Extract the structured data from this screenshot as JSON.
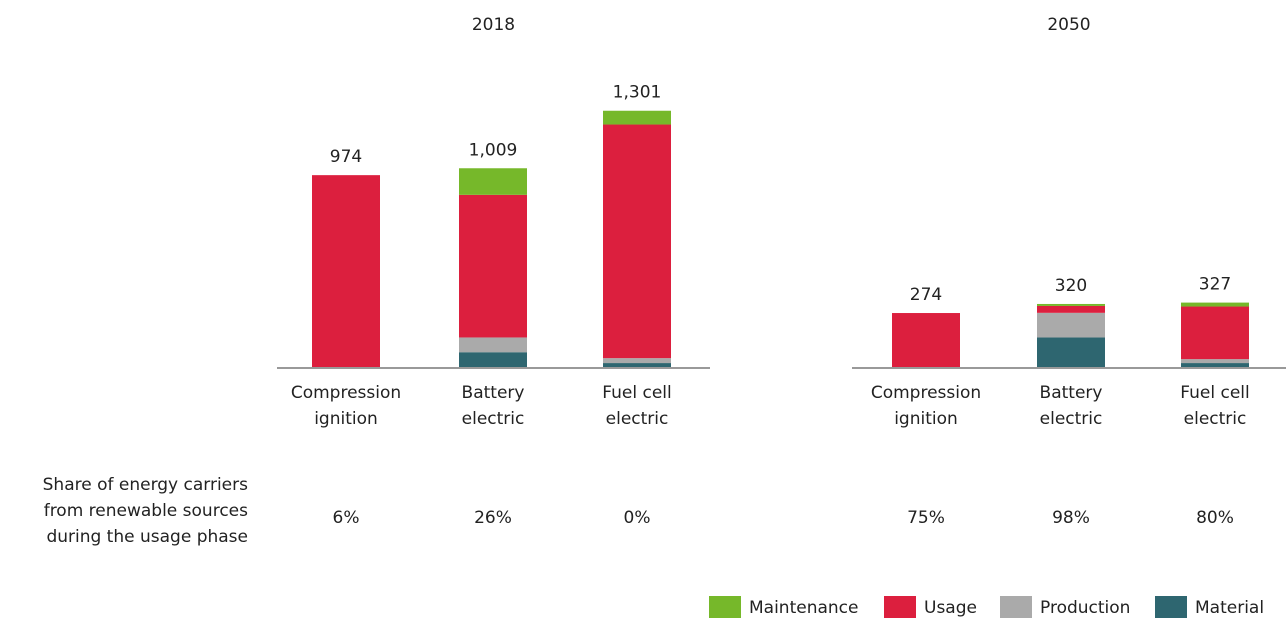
{
  "chart_data": [
    {
      "type": "stacked_bar",
      "title": "2018",
      "categories": [
        [
          "Compression",
          "ignition"
        ],
        [
          "Battery",
          "electric"
        ],
        [
          "Fuel cell",
          "electric"
        ]
      ],
      "series": [
        {
          "name": "Maintenance",
          "color": "#76b82a",
          "values": [
            0,
            135,
            70
          ]
        },
        {
          "name": "Usage",
          "color": "#dc1f3e",
          "values": [
            974,
            724,
            1186
          ]
        },
        {
          "name": "Production",
          "color": "#aaaaaa",
          "values": [
            0,
            75,
            25
          ]
        },
        {
          "name": "Material",
          "color": "#2e6670",
          "values": [
            0,
            75,
            20
          ]
        }
      ],
      "totals": [
        974,
        1009,
        1301
      ],
      "total_labels": [
        "974",
        "1,009",
        "1,301"
      ],
      "renewable_share": [
        6,
        26,
        0
      ],
      "renewable_share_labels": [
        "6%",
        "26%",
        "0%"
      ],
      "ylim": [
        0,
        1320
      ]
    },
    {
      "type": "stacked_bar",
      "title": "2050",
      "categories": [
        [
          "Compression",
          "ignition"
        ],
        [
          "Battery",
          "electric"
        ],
        [
          "Fuel cell",
          "electric"
        ]
      ],
      "series": [
        {
          "name": "Maintenance",
          "color": "#76b82a",
          "values": [
            0,
            10,
            20
          ]
        },
        {
          "name": "Usage",
          "color": "#dc1f3e",
          "values": [
            274,
            35,
            267
          ]
        },
        {
          "name": "Production",
          "color": "#aaaaaa",
          "values": [
            0,
            125,
            20
          ]
        },
        {
          "name": "Material",
          "color": "#2e6670",
          "values": [
            0,
            150,
            20
          ]
        }
      ],
      "totals": [
        274,
        320,
        327
      ],
      "total_labels": [
        "274",
        "320",
        "327"
      ],
      "renewable_share": [
        75,
        98,
        80
      ],
      "renewable_share_labels": [
        "75%",
        "98%",
        "80%"
      ],
      "ylim": [
        0,
        1320
      ]
    }
  ],
  "renewable_label": [
    "Share of energy carriers",
    "from renewable sources",
    "during the usage phase"
  ]
}
